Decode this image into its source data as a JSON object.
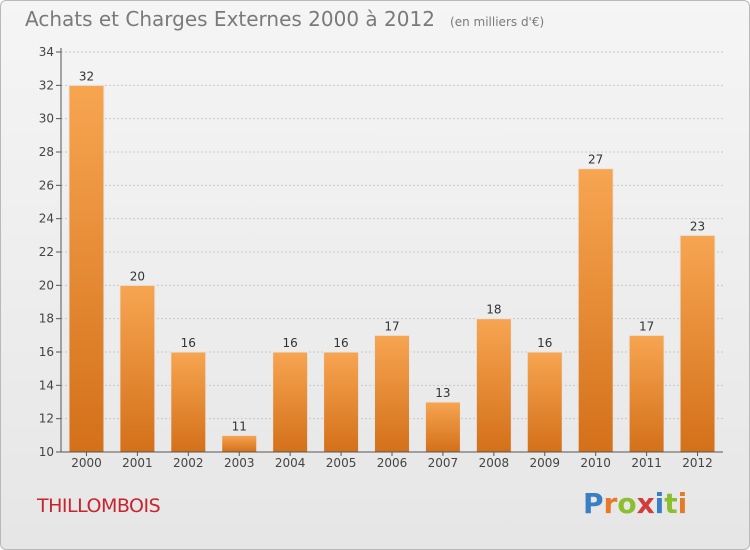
{
  "header": {
    "title": "Achats et Charges Externes 2000 à 2012",
    "unit": "(en milliers d'€)"
  },
  "footer": {
    "commune": "THILLOMBOIS",
    "logo_letters": [
      "P",
      "r",
      "o",
      "x",
      "i",
      "t",
      "i"
    ],
    "logo_colors": [
      "#3a7fc4",
      "#e8792b",
      "#8bbf2f",
      "#d23c3c",
      "#3a7fc4",
      "#8bbf2f",
      "#e8792b"
    ]
  },
  "chart_data": {
    "type": "bar",
    "categories": [
      "2000",
      "2001",
      "2002",
      "2003",
      "2004",
      "2005",
      "2006",
      "2007",
      "2008",
      "2009",
      "2010",
      "2011",
      "2012"
    ],
    "values": [
      32,
      20,
      16,
      11,
      16,
      16,
      17,
      13,
      18,
      16,
      27,
      17,
      23
    ],
    "ylim": [
      10,
      34
    ],
    "yticks": [
      10,
      12,
      14,
      16,
      18,
      20,
      22,
      24,
      26,
      28,
      30,
      32,
      34
    ],
    "grid": true,
    "bar_color_top": "#f7a551",
    "bar_color_bottom": "#d4701a"
  }
}
